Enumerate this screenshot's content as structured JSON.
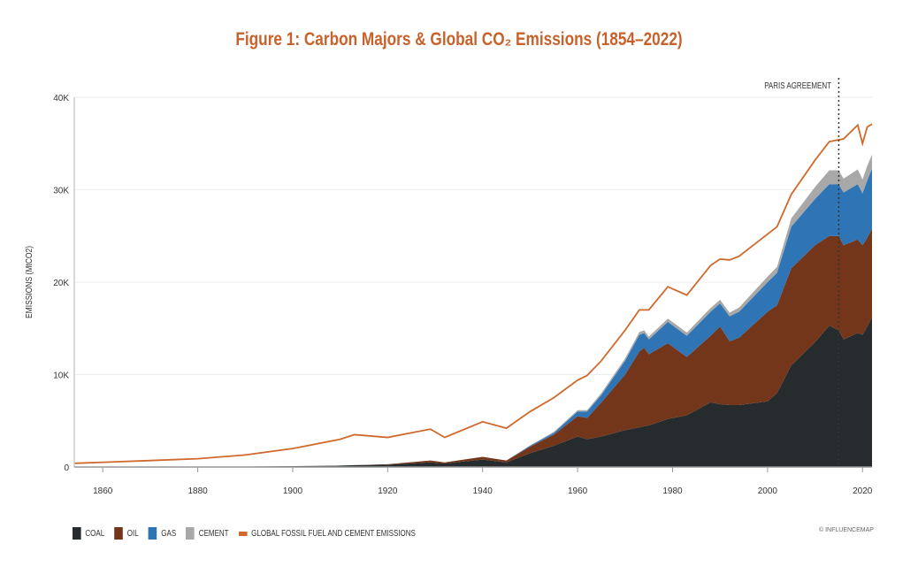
{
  "chart_data": {
    "type": "area",
    "title": "Figure 1: Carbon Majors & Global CO₂ Emissions (1854–2022)",
    "xlabel": "",
    "ylabel": "EMISSIONS (MtCO2)",
    "xlim": [
      1854,
      2022
    ],
    "ylim": [
      0,
      40000
    ],
    "x_ticks": [
      "1860",
      "1880",
      "1900",
      "1920",
      "1940",
      "1960",
      "1980",
      "2000",
      "2020"
    ],
    "y_ticks": [
      "0",
      "10K",
      "20K",
      "30K",
      "40K"
    ],
    "grid": true,
    "stacked": true,
    "legend_position": "bottom-left",
    "x": [
      1854,
      1870,
      1880,
      1890,
      1900,
      1910,
      1913,
      1920,
      1929,
      1932,
      1940,
      1945,
      1950,
      1955,
      1960,
      1962,
      1965,
      1970,
      1973,
      1974,
      1975,
      1979,
      1983,
      1988,
      1990,
      1992,
      1994,
      2000,
      2002,
      2005,
      2010,
      2013,
      2015,
      2016,
      2019,
      2020,
      2021,
      2022
    ],
    "series": [
      {
        "name": "COAL",
        "color": "#262b2e",
        "values": [
          0,
          0,
          0,
          50,
          100,
          150,
          200,
          250,
          500,
          400,
          800,
          500,
          1500,
          2300,
          3300,
          3000,
          3300,
          4000,
          4300,
          4400,
          4500,
          5200,
          5600,
          7000,
          6800,
          6700,
          6700,
          7100,
          8000,
          11000,
          13500,
          15300,
          14800,
          13800,
          14500,
          14300,
          15200,
          16200
        ]
      },
      {
        "name": "OIL",
        "color": "#73361b",
        "values": [
          0,
          0,
          0,
          0,
          0,
          0,
          0,
          50,
          200,
          100,
          300,
          200,
          700,
          1200,
          2200,
          2300,
          3700,
          6000,
          8200,
          8500,
          7700,
          8200,
          6300,
          7200,
          8400,
          6900,
          7300,
          9700,
          9500,
          10500,
          10500,
          9700,
          10200,
          10200,
          10100,
          9700,
          9600,
          9600
        ]
      },
      {
        "name": "GAS",
        "color": "#2f74b5",
        "values": [
          0,
          0,
          0,
          0,
          0,
          0,
          0,
          0,
          0,
          0,
          0,
          0,
          100,
          200,
          500,
          700,
          800,
          1500,
          1800,
          1600,
          1600,
          2300,
          2300,
          2600,
          2500,
          2700,
          2800,
          3200,
          3500,
          4500,
          5000,
          5600,
          5600,
          5700,
          6000,
          5600,
          6200,
          6500
        ]
      },
      {
        "name": "CEMENT",
        "color": "#a8a8a8",
        "values": [
          0,
          0,
          0,
          0,
          0,
          0,
          0,
          0,
          0,
          0,
          0,
          0,
          50,
          100,
          150,
          150,
          200,
          250,
          300,
          300,
          300,
          350,
          350,
          400,
          400,
          400,
          450,
          600,
          650,
          900,
          1300,
          1500,
          1500,
          1500,
          1600,
          1500,
          1600,
          1500
        ]
      },
      {
        "name": "GLOBAL FOSSIL FUEL AND CEMENT EMISSIONS",
        "color": "#d0692c",
        "type": "line",
        "values": [
          400,
          700,
          900,
          1300,
          2000,
          3000,
          3500,
          3200,
          4100,
          3200,
          4900,
          4200,
          6000,
          7500,
          9400,
          9900,
          11500,
          14800,
          17000,
          17000,
          17000,
          19500,
          18600,
          21800,
          22500,
          22400,
          22800,
          25200,
          26000,
          29500,
          33200,
          35200,
          35400,
          35500,
          37000,
          35000,
          36800,
          37100
        ]
      }
    ],
    "annotations": [
      {
        "text": "PARIS AGREEMENT",
        "x": 2015,
        "style": "dotted-vertical-line"
      }
    ],
    "credit": "© INFLUENCEMAP"
  }
}
